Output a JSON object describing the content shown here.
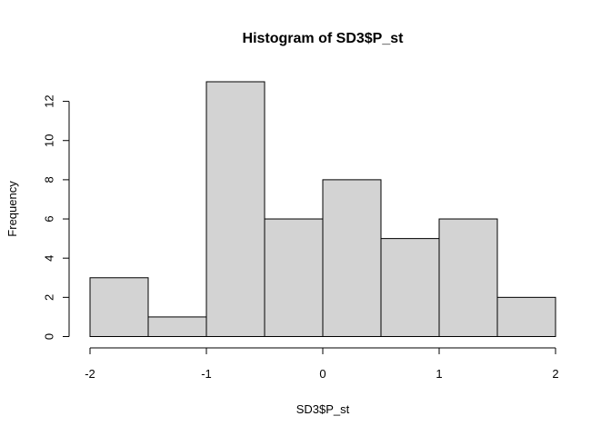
{
  "chart_data": {
    "type": "bar",
    "title": "Histogram of SD3$P_st",
    "xlabel": "SD3$P_st",
    "ylabel": "Frequency",
    "bin_edges": [
      -2,
      -1.5,
      -1,
      -0.5,
      0,
      0.5,
      1,
      1.5,
      2
    ],
    "values": [
      3,
      1,
      13,
      6,
      8,
      5,
      6,
      2
    ],
    "xlim": [
      -2,
      2
    ],
    "ylim": [
      0,
      13
    ],
    "x_ticks": [
      -2,
      -1,
      0,
      1,
      2
    ],
    "x_tick_labels": [
      "-2",
      "-1",
      "0",
      "1",
      "2"
    ],
    "y_ticks": [
      0,
      2,
      4,
      6,
      8,
      10,
      12
    ],
    "y_tick_labels": [
      "0",
      "2",
      "4",
      "6",
      "8",
      "10",
      "12"
    ],
    "bar_color": "#d3d3d3",
    "border_color": "#000000",
    "grid": false
  }
}
